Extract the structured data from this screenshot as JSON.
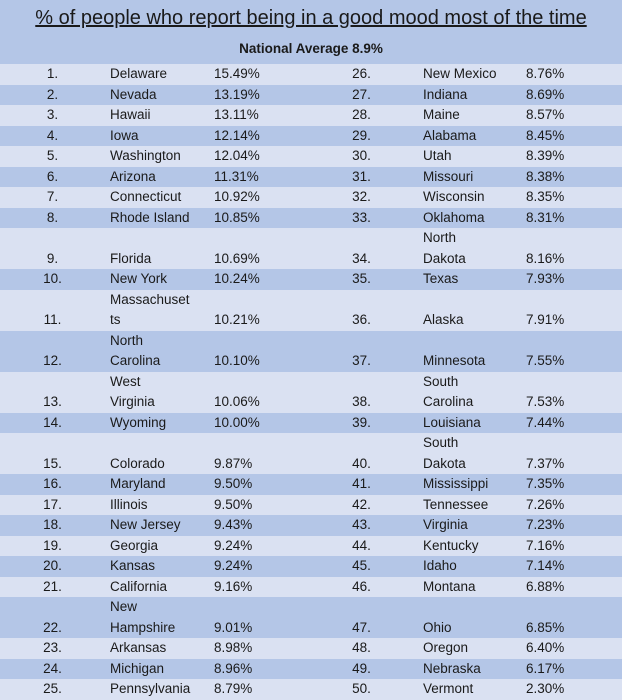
{
  "title": "% of people who report being in a good mood most of the time",
  "subtitle": "National Average 8.9%",
  "colors": {
    "header": "#b4c6e7",
    "row_dark": "#b4c6e7",
    "row_light": "#dae1f2"
  },
  "rows": [
    {
      "l": {
        "rank": "1.",
        "state": "Delaware",
        "pct": "15.49%"
      },
      "r": {
        "rank": "26.",
        "state": "New Mexico",
        "pct": "8.76%"
      }
    },
    {
      "l": {
        "rank": "2.",
        "state": "Nevada",
        "pct": "13.19%"
      },
      "r": {
        "rank": "27.",
        "state": "Indiana",
        "pct": "8.69%"
      }
    },
    {
      "l": {
        "rank": "3.",
        "state": "Hawaii",
        "pct": "13.11%"
      },
      "r": {
        "rank": "28.",
        "state": "Maine",
        "pct": "8.57%"
      }
    },
    {
      "l": {
        "rank": "4.",
        "state": "Iowa",
        "pct": "12.14%"
      },
      "r": {
        "rank": "29.",
        "state": "Alabama",
        "pct": "8.45%"
      }
    },
    {
      "l": {
        "rank": "5.",
        "state": "Washington",
        "pct": "12.04%"
      },
      "r": {
        "rank": "30.",
        "state": "Utah",
        "pct": "8.39%"
      }
    },
    {
      "l": {
        "rank": "6.",
        "state": "Arizona",
        "pct": "11.31%"
      },
      "r": {
        "rank": "31.",
        "state": "Missouri",
        "pct": "8.38%"
      }
    },
    {
      "l": {
        "rank": "7.",
        "state": "Connecticut",
        "pct": "10.92%"
      },
      "r": {
        "rank": "32.",
        "state": "Wisconsin",
        "pct": "8.35%"
      }
    },
    {
      "l": {
        "rank": "8.",
        "state": "Rhode Island",
        "pct": "10.85%"
      },
      "r": {
        "rank": "33.",
        "state": "Oklahoma",
        "pct": "8.31%"
      }
    },
    {
      "l": {
        "rank": "9.",
        "state": "Florida",
        "pct": "10.69%"
      },
      "r": {
        "rank": "34.",
        "state": "North\nDakota",
        "pct": "8.16%"
      }
    },
    {
      "l": {
        "rank": "10.",
        "state": "New York",
        "pct": "10.24%"
      },
      "r": {
        "rank": "35.",
        "state": "Texas",
        "pct": "7.93%"
      }
    },
    {
      "l": {
        "rank": "11.",
        "state": "Massachuset\nts",
        "pct": "10.21%"
      },
      "r": {
        "rank": "36.",
        "state": "Alaska",
        "pct": "7.91%"
      }
    },
    {
      "l": {
        "rank": "12.",
        "state": "North\nCarolina",
        "pct": "10.10%"
      },
      "r": {
        "rank": "37.",
        "state": "Minnesota",
        "pct": "7.55%"
      }
    },
    {
      "l": {
        "rank": "13.",
        "state": "West\nVirginia",
        "pct": "10.06%"
      },
      "r": {
        "rank": "38.",
        "state": "South\nCarolina",
        "pct": "7.53%"
      }
    },
    {
      "l": {
        "rank": "14.",
        "state": "Wyoming",
        "pct": "10.00%"
      },
      "r": {
        "rank": "39.",
        "state": "Louisiana",
        "pct": "7.44%"
      }
    },
    {
      "l": {
        "rank": "15.",
        "state": "Colorado",
        "pct": "9.87%"
      },
      "r": {
        "rank": "40.",
        "state": "South\nDakota",
        "pct": "7.37%"
      }
    },
    {
      "l": {
        "rank": "16.",
        "state": "Maryland",
        "pct": "9.50%"
      },
      "r": {
        "rank": "41.",
        "state": "Mississippi",
        "pct": "7.35%"
      }
    },
    {
      "l": {
        "rank": "17.",
        "state": "Illinois",
        "pct": "9.50%"
      },
      "r": {
        "rank": "42.",
        "state": "Tennessee",
        "pct": "7.26%"
      }
    },
    {
      "l": {
        "rank": "18.",
        "state": "New Jersey",
        "pct": "9.43%"
      },
      "r": {
        "rank": "43.",
        "state": "Virginia",
        "pct": "7.23%"
      }
    },
    {
      "l": {
        "rank": "19.",
        "state": "Georgia",
        "pct": "9.24%"
      },
      "r": {
        "rank": "44.",
        "state": "Kentucky",
        "pct": "7.16%"
      }
    },
    {
      "l": {
        "rank": "20.",
        "state": "Kansas",
        "pct": "9.24%"
      },
      "r": {
        "rank": "45.",
        "state": "Idaho",
        "pct": "7.14%"
      }
    },
    {
      "l": {
        "rank": "21.",
        "state": "California",
        "pct": "9.16%"
      },
      "r": {
        "rank": "46.",
        "state": "Montana",
        "pct": "6.88%"
      }
    },
    {
      "l": {
        "rank": "22.",
        "state": "New\nHampshire",
        "pct": "9.01%"
      },
      "r": {
        "rank": "47.",
        "state": "Ohio",
        "pct": "6.85%"
      }
    },
    {
      "l": {
        "rank": "23.",
        "state": "Arkansas",
        "pct": "8.98%"
      },
      "r": {
        "rank": "48.",
        "state": "Oregon",
        "pct": "6.40%"
      }
    },
    {
      "l": {
        "rank": "24.",
        "state": "Michigan",
        "pct": "8.96%"
      },
      "r": {
        "rank": "49.",
        "state": "Nebraska",
        "pct": "6.17%"
      }
    },
    {
      "l": {
        "rank": "25.",
        "state": "Pennsylvania",
        "pct": "8.79%"
      },
      "r": {
        "rank": "50.",
        "state": "Vermont",
        "pct": "2.30%"
      }
    }
  ]
}
